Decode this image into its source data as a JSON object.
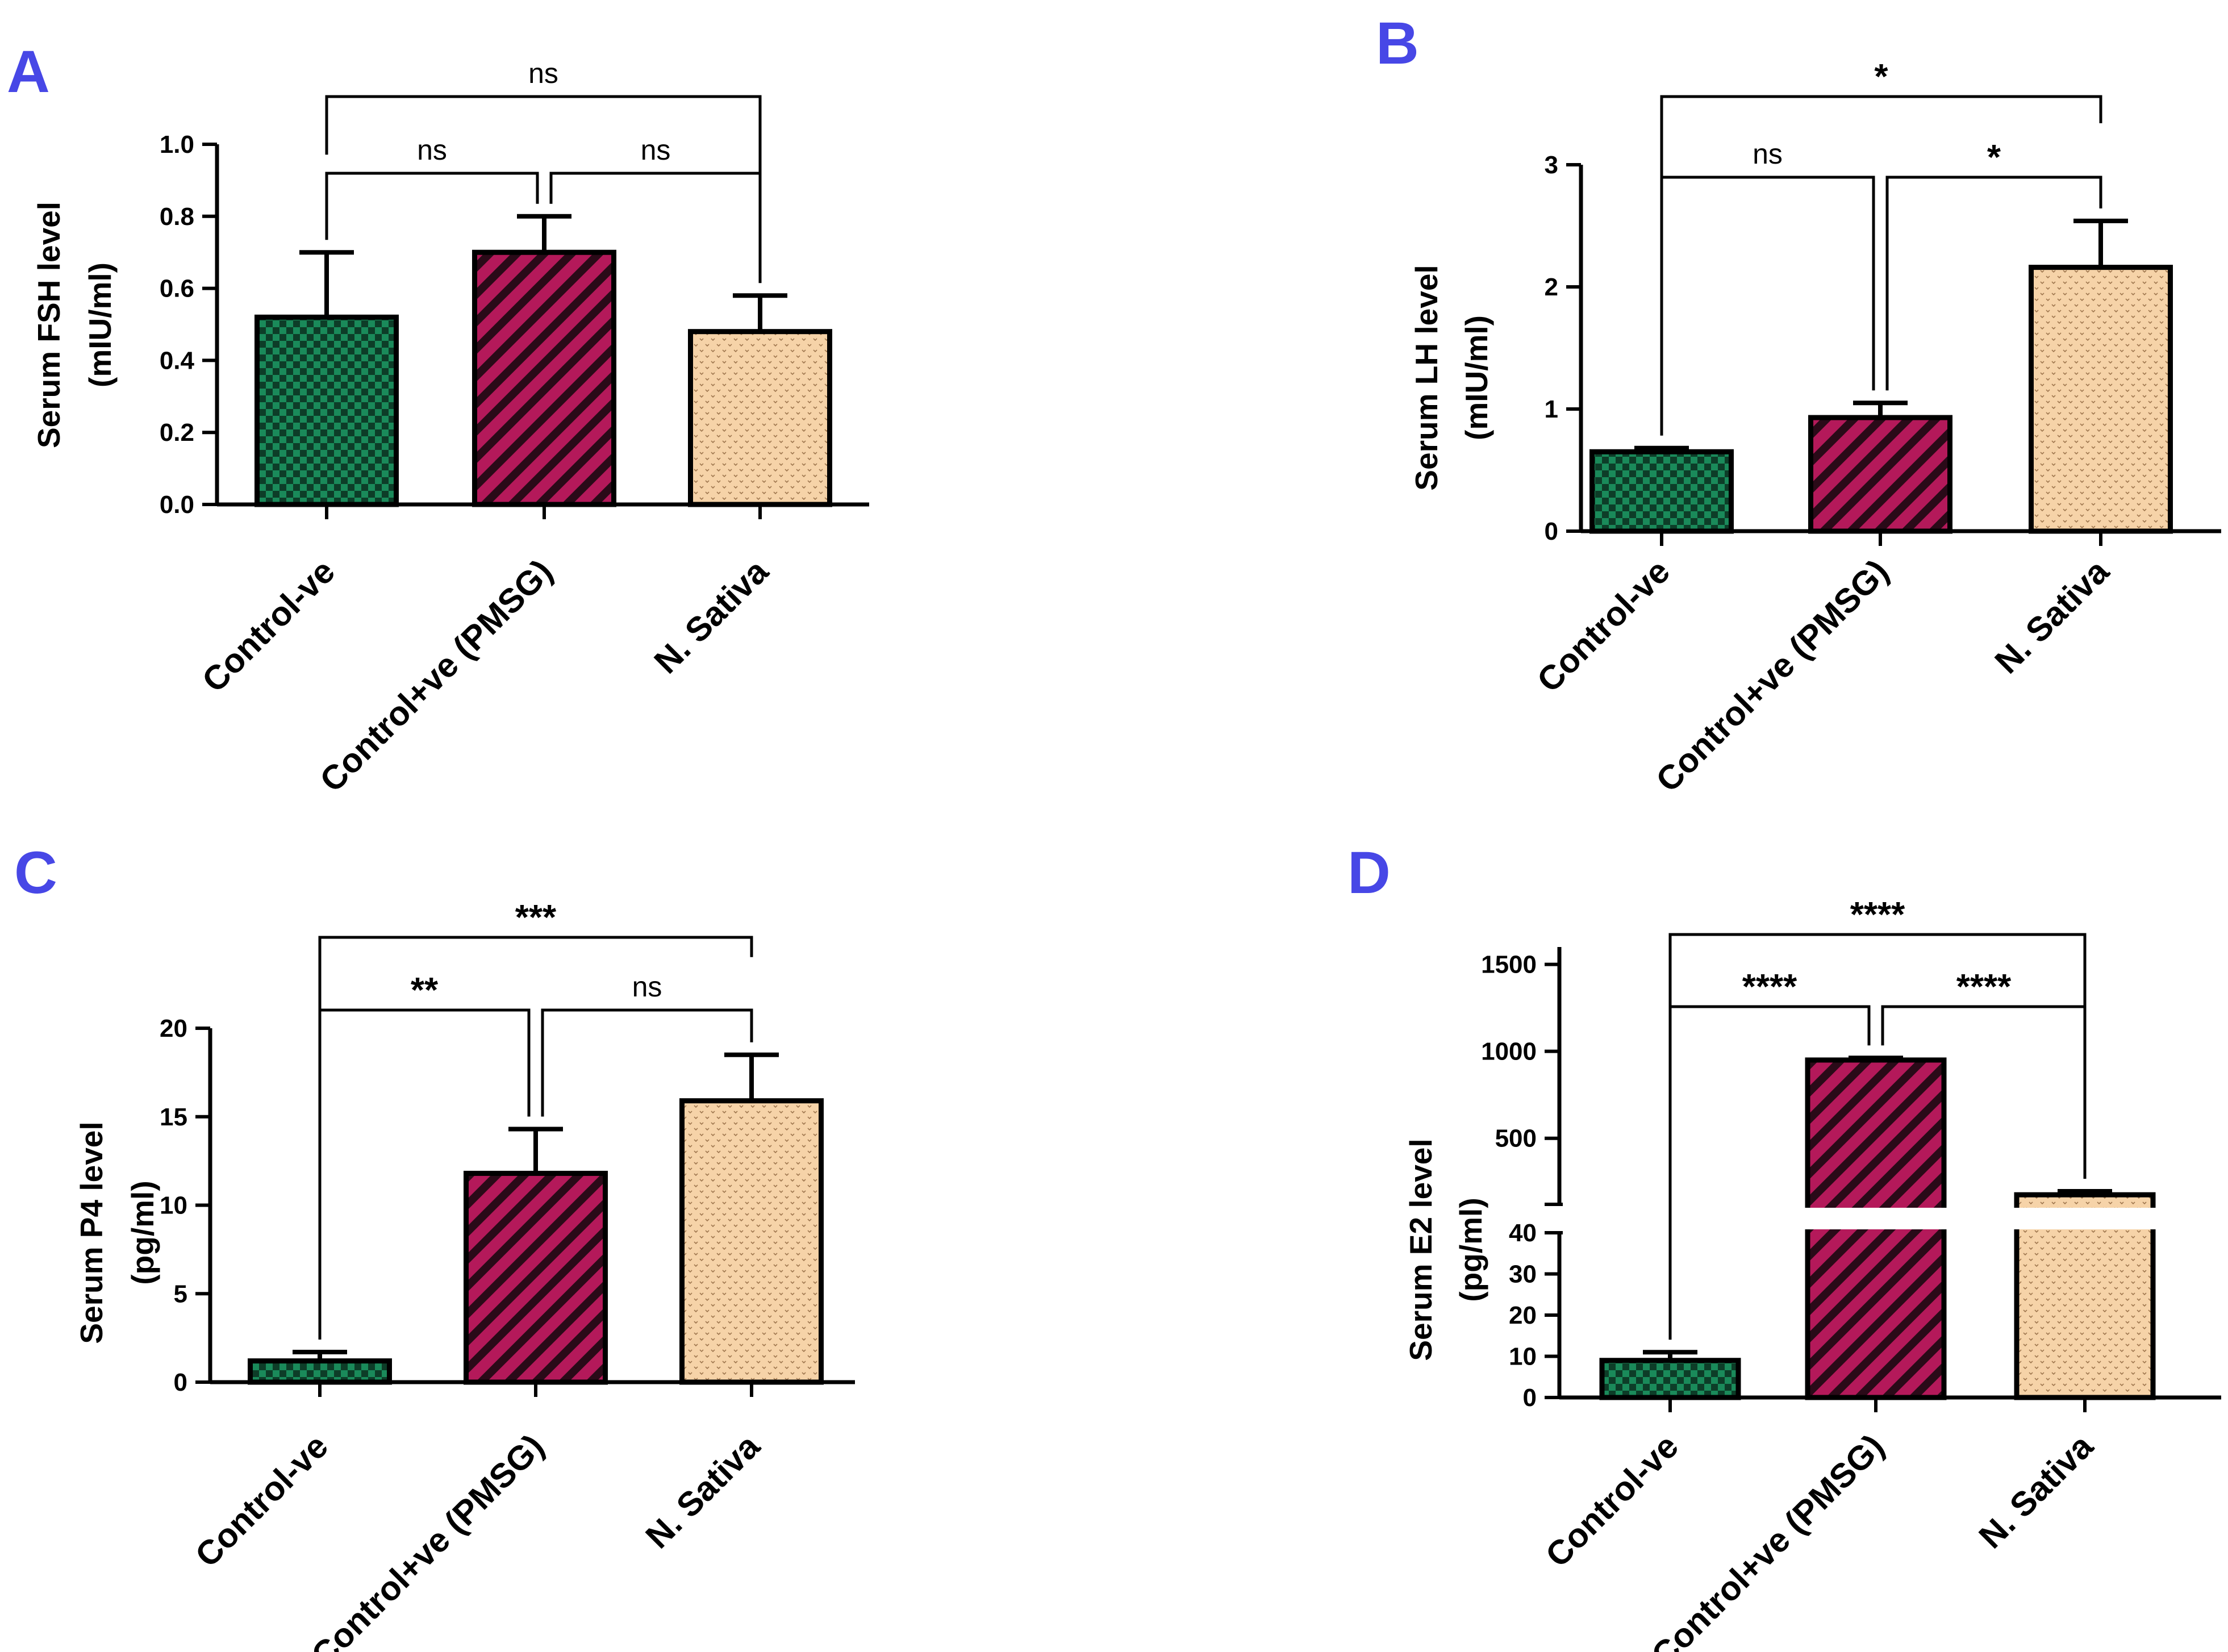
{
  "colors": {
    "panel_letter": "#4747e6",
    "control_neg": "#1a8a5a",
    "control_neg_alt": "#0d3d28",
    "control_pos": "#b4195a",
    "control_pos_stripe": "#2a0a18",
    "n_sativa": "#f6d3a8",
    "n_sativa_dot": "#a07850",
    "axis": "#000000"
  },
  "chart_data": [
    {
      "panel": "A",
      "type": "bar",
      "ylabel": [
        "Serum FSH level",
        "(mIU/ml)"
      ],
      "categories": [
        "Control-ve",
        "Control+ve (PMSG)",
        "N. Sativa"
      ],
      "values": [
        0.52,
        0.7,
        0.48
      ],
      "errors": [
        0.18,
        0.1,
        0.1
      ],
      "ylim": [
        0,
        1.0
      ],
      "yticks": [
        0.0,
        0.2,
        0.4,
        0.6,
        0.8,
        1.0
      ],
      "yticklabels": [
        "0.0",
        "0.2",
        "0.4",
        "0.6",
        "0.8",
        "1.0"
      ],
      "comparisons": [
        {
          "from": 0,
          "to": 2,
          "label": "ns"
        },
        {
          "from": 0,
          "to": 1,
          "label": "ns"
        },
        {
          "from": 1,
          "to": 2,
          "label": "ns"
        }
      ]
    },
    {
      "panel": "B",
      "type": "bar",
      "ylabel": [
        "Serum LH level",
        "(mIU/ml)"
      ],
      "categories": [
        "Control-ve",
        "Control+ve (PMSG)",
        "N. Sativa"
      ],
      "values": [
        0.65,
        0.93,
        2.16
      ],
      "errors": [
        0.03,
        0.12,
        0.38
      ],
      "ylim": [
        0,
        3
      ],
      "yticks": [
        0,
        1,
        2,
        3
      ],
      "yticklabels": [
        "0",
        "1",
        "2",
        "3"
      ],
      "comparisons": [
        {
          "from": 0,
          "to": 2,
          "label": "*"
        },
        {
          "from": 0,
          "to": 1,
          "label": "ns"
        },
        {
          "from": 1,
          "to": 2,
          "label": "*"
        }
      ]
    },
    {
      "panel": "C",
      "type": "bar",
      "ylabel": [
        "Serum P4 level",
        "(pg/ml)"
      ],
      "categories": [
        "Control-ve",
        "Control+ve (PMSG)",
        "N. Sativa"
      ],
      "values": [
        1.2,
        11.8,
        15.9
      ],
      "errors": [
        0.5,
        2.5,
        2.6
      ],
      "ylim": [
        0,
        20
      ],
      "yticks": [
        0,
        5,
        10,
        15,
        20
      ],
      "yticklabels": [
        "0",
        "5",
        "10",
        "15",
        "20"
      ],
      "comparisons": [
        {
          "from": 0,
          "to": 2,
          "label": "***"
        },
        {
          "from": 0,
          "to": 1,
          "label": "**"
        },
        {
          "from": 1,
          "to": 2,
          "label": "ns"
        }
      ]
    },
    {
      "panel": "D",
      "type": "bar",
      "broken_axis": true,
      "ylabel": [
        "Serum E2 level",
        "(pg/ml)"
      ],
      "categories": [
        "Control-ve",
        "Control+ve (PMSG)",
        "N. Sativa"
      ],
      "values": [
        9,
        950,
        175
      ],
      "errors": [
        2,
        12,
        20
      ],
      "lower_range": [
        0,
        40
      ],
      "upper_range": [
        120,
        1600
      ],
      "lower_ticks": [
        0,
        10,
        20,
        30,
        40
      ],
      "lower_ticklabels": [
        "0",
        "10",
        "20",
        "30",
        "40"
      ],
      "upper_ticks": [
        500,
        1000,
        1500
      ],
      "upper_ticklabels": [
        "500",
        "1000",
        "1500"
      ],
      "comparisons": [
        {
          "from": 0,
          "to": 2,
          "label": "****"
        },
        {
          "from": 0,
          "to": 1,
          "label": "****"
        },
        {
          "from": 1,
          "to": 2,
          "label": "****"
        }
      ]
    }
  ]
}
